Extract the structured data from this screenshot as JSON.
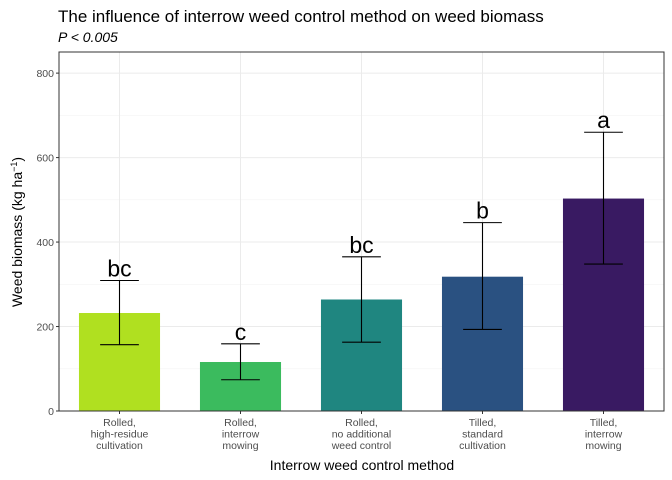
{
  "chart_data": {
    "type": "bar",
    "title": "The influence of interrow weed control method on weed biomass",
    "subtitle": "P < 0.005",
    "xlabel": "Interrow weed control method",
    "ylabel_main": "Weed biomass (kg ha",
    "ylabel_sup": "−1",
    "ylabel_close": ")",
    "ylim": [
      0,
      850
    ],
    "yticks": [
      0,
      200,
      400,
      600,
      800
    ],
    "grid": true,
    "categories": [
      [
        "Rolled,",
        "high-residue",
        "cultivation"
      ],
      [
        "Rolled,",
        "interrow",
        "mowing"
      ],
      [
        "Rolled,",
        "no additional",
        "weed control"
      ],
      [
        "Tilled,",
        "standard",
        "cultivation"
      ],
      [
        "Tilled,",
        "interrow",
        "mowing"
      ]
    ],
    "values": [
      232,
      116,
      264,
      318,
      503
    ],
    "error_low": [
      157,
      74,
      163,
      193,
      348
    ],
    "error_high": [
      309,
      159,
      365,
      446,
      660
    ],
    "significance": [
      "bc",
      "c",
      "bc",
      "b",
      "a"
    ],
    "colors": [
      "#B0E020",
      "#3BBB5E",
      "#1F8680",
      "#2A5181",
      "#391A62"
    ]
  }
}
